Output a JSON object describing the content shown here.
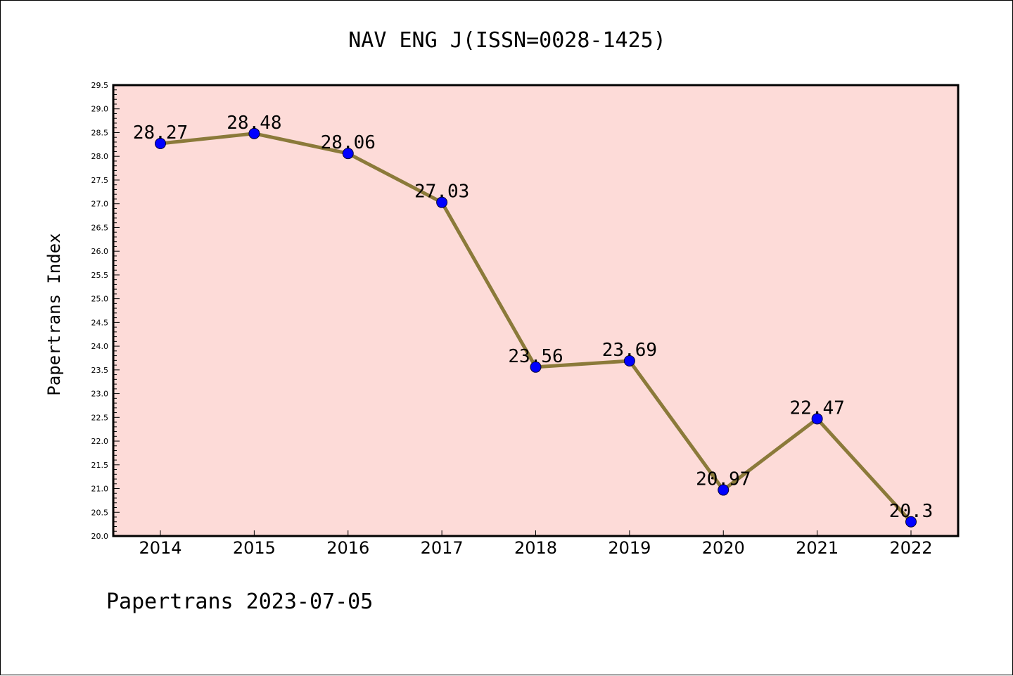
{
  "chart_data": {
    "type": "line",
    "title": "NAV ENG J(ISSN=0028-1425)",
    "xlabel": "",
    "ylabel": "Papertrans Index",
    "categories": [
      "2014",
      "2015",
      "2016",
      "2017",
      "2018",
      "2019",
      "2020",
      "2021",
      "2022"
    ],
    "series": [
      {
        "values": [
          28.27,
          28.48,
          28.06,
          27.03,
          23.56,
          23.69,
          20.97,
          22.47,
          20.3
        ],
        "labels": [
          "28.27",
          "28.48",
          "28.06",
          "27.03",
          "23.56",
          "23.69",
          "20.97",
          "22.47",
          "20.3"
        ]
      }
    ],
    "ylim": [
      20.0,
      29.5
    ],
    "yticks": [
      "20.0",
      "20.5",
      "21.0",
      "21.5",
      "22.0",
      "22.5",
      "23.0",
      "23.5",
      "24.0",
      "24.5",
      "25.0",
      "25.5",
      "26.0",
      "26.5",
      "27.0",
      "27.5",
      "28.0",
      "28.5",
      "29.0",
      "29.5"
    ],
    "grid": false,
    "legend": "none",
    "colors": {
      "plot_background": "#fddbd8",
      "line": "#8b7a3a",
      "marker": "#0000ff"
    }
  },
  "footer": "Papertrans 2023-07-05"
}
